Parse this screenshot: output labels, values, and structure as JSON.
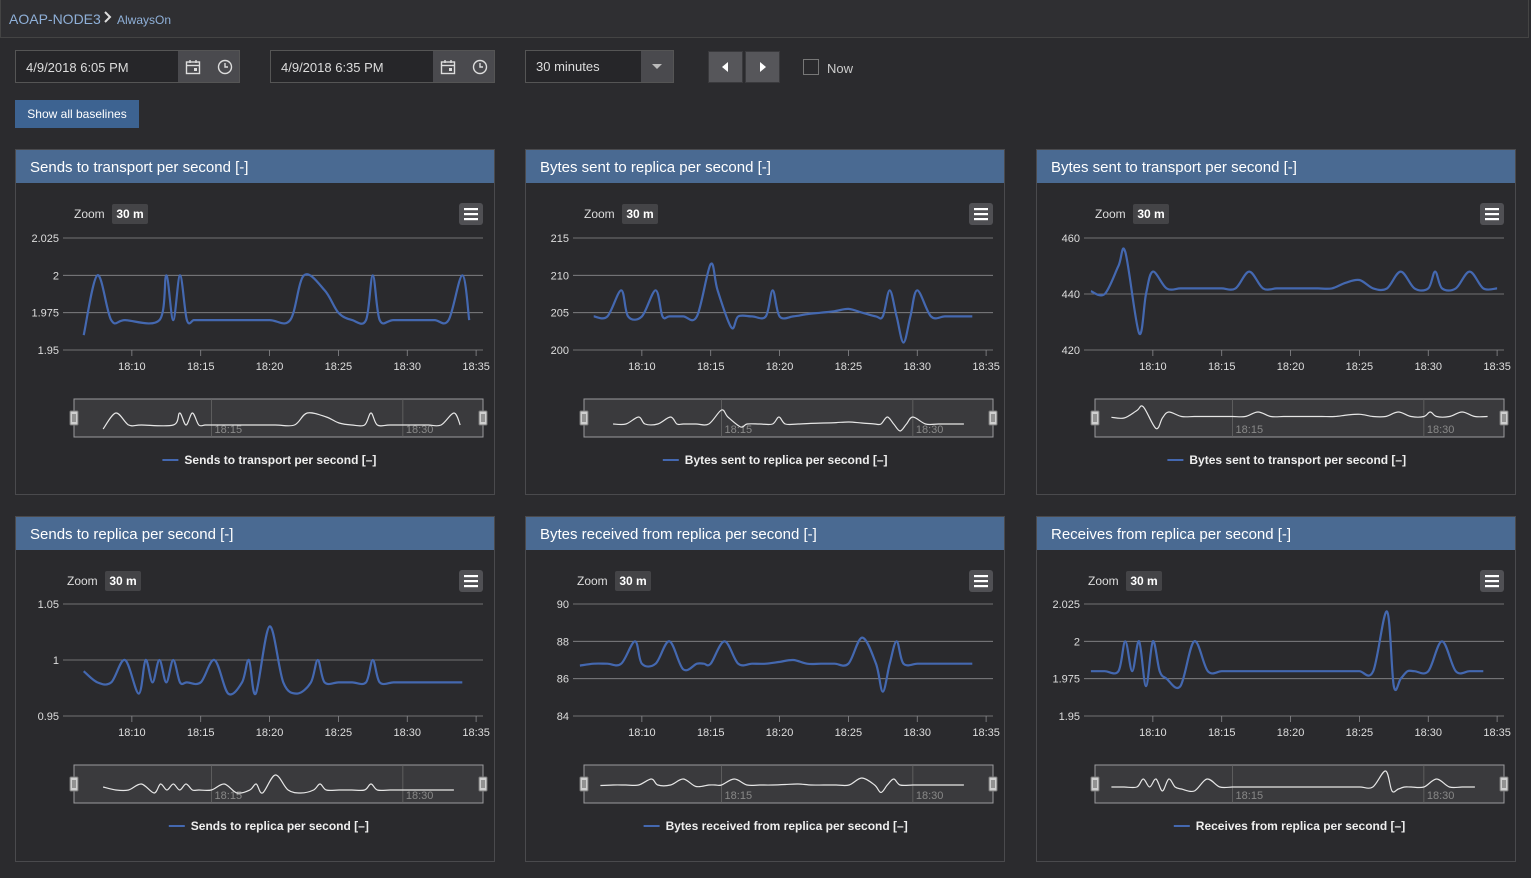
{
  "breadcrumb": {
    "root": "AOAP-NODE3",
    "separator": ">",
    "leaf": "AlwaysOn"
  },
  "toolbar": {
    "start_datetime": "4/9/2018 6:05 PM",
    "end_datetime": "4/9/2018 6:35 PM",
    "range_select": "30 minutes",
    "now_label": "Now",
    "now_checked": false,
    "show_baselines_label": "Show all baselines"
  },
  "icons": [
    "breadcrumb-chevron-icon",
    "calendar-icon",
    "clock-icon",
    "dropdown-arrow-icon",
    "prev-icon",
    "next-icon",
    "hamburger-menu-icon"
  ],
  "colors": {
    "panel_header": "#4a6a92",
    "series_line": "#4468b0",
    "button": "#3d6391"
  },
  "panels": [
    {
      "title": "Sends to transport per second [-]",
      "zoom_label": "Zoom",
      "zoom_value": "30 m",
      "legend": "Sends to transport per second [–]"
    },
    {
      "title": "Bytes sent to replica per second [-]",
      "zoom_label": "Zoom",
      "zoom_value": "30 m",
      "legend": "Bytes sent to replica per second [–]"
    },
    {
      "title": "Bytes sent to transport per second [-]",
      "zoom_label": "Zoom",
      "zoom_value": "30 m",
      "legend": "Bytes sent to transport per second [–]"
    },
    {
      "title": "Sends to replica per second [-]",
      "zoom_label": "Zoom",
      "zoom_value": "30 m",
      "legend": "Sends to replica per second [–]"
    },
    {
      "title": "Bytes received from replica per second [-]",
      "zoom_label": "Zoom",
      "zoom_value": "30 m",
      "legend": "Bytes received from replica per second [–]"
    },
    {
      "title": "Receives from replica per second [-]",
      "zoom_label": "Zoom",
      "zoom_value": "30 m",
      "legend": "Receives from replica per second [–]"
    }
  ],
  "chart_data": [
    {
      "type": "line",
      "y_ticks": [
        "2.025",
        "2",
        "1.975",
        "1.95"
      ],
      "ylim": [
        1.95,
        2.025
      ],
      "x_ticks": [
        "18:10",
        "18:15",
        "18:20",
        "18:25",
        "18:30",
        "18:35"
      ],
      "navigator_ticks": [
        "18:15",
        "18:30"
      ],
      "series": [
        {
          "name": "Sends to transport per second [–]",
          "x": [
            6.5,
            7.5,
            8.5,
            9.5,
            12,
            12.5,
            13,
            13.5,
            14,
            14.5,
            15,
            16,
            18,
            20,
            21.5,
            22.5,
            24,
            25,
            26,
            27,
            27.5,
            28,
            29,
            31,
            32,
            33,
            34,
            34.5
          ],
          "values": [
            1.96,
            2,
            1.97,
            1.97,
            1.97,
            2,
            1.97,
            2,
            1.97,
            1.97,
            1.97,
            1.97,
            1.97,
            1.97,
            1.97,
            2,
            1.99,
            1.975,
            1.97,
            1.97,
            2,
            1.97,
            1.97,
            1.97,
            1.97,
            1.97,
            2,
            1.97
          ]
        }
      ]
    },
    {
      "type": "line",
      "y_ticks": [
        "215",
        "210",
        "205",
        "200"
      ],
      "ylim": [
        200,
        215
      ],
      "x_ticks": [
        "18:10",
        "18:15",
        "18:20",
        "18:25",
        "18:30",
        "18:35"
      ],
      "navigator_ticks": [
        "18:15",
        "18:30"
      ],
      "series": [
        {
          "name": "Bytes sent to replica per second [–]",
          "x": [
            6.5,
            7.5,
            8.5,
            9,
            10,
            11,
            11.5,
            12,
            13,
            14,
            15,
            15.5,
            16.5,
            17,
            18,
            19,
            19.5,
            20,
            21,
            22,
            23,
            24,
            25,
            26,
            27,
            27.5,
            28,
            28.5,
            29,
            29.5,
            30,
            31,
            32,
            33,
            34
          ],
          "values": [
            204.5,
            204.5,
            208,
            204.5,
            204.5,
            208,
            204.5,
            204.5,
            204.5,
            204.5,
            211.5,
            208,
            203,
            204.5,
            204.5,
            204.5,
            208,
            204.5,
            204.5,
            204.8,
            205,
            205.2,
            205.5,
            205,
            204.5,
            204.5,
            208,
            204.5,
            201,
            204.5,
            208,
            204.5,
            204.5,
            204.5,
            204.5
          ]
        }
      ]
    },
    {
      "type": "line",
      "y_ticks": [
        "460",
        "440",
        "420"
      ],
      "ylim": [
        420,
        460
      ],
      "x_ticks": [
        "18:10",
        "18:15",
        "18:20",
        "18:25",
        "18:30",
        "18:35"
      ],
      "navigator_ticks": [
        "18:15",
        "18:30"
      ],
      "series": [
        {
          "name": "Bytes sent to transport per second [–]",
          "x": [
            5.5,
            6.5,
            7.5,
            8,
            9,
            9.5,
            10,
            11,
            12,
            13,
            14,
            15,
            16,
            17,
            18,
            19,
            20,
            21,
            22,
            23,
            24,
            25,
            26,
            27,
            28,
            29,
            30,
            30.5,
            31,
            32,
            33,
            34,
            35
          ],
          "values": [
            441,
            440,
            450,
            455,
            426,
            440,
            448,
            442,
            442,
            442,
            442,
            442,
            442,
            448,
            442,
            442,
            442,
            442,
            442,
            442,
            444,
            445,
            442,
            442,
            448,
            442,
            442,
            448,
            442,
            442,
            448,
            442,
            442
          ]
        }
      ]
    },
    {
      "type": "line",
      "y_ticks": [
        "1.05",
        "1",
        "0.95"
      ],
      "ylim": [
        0.95,
        1.05
      ],
      "x_ticks": [
        "18:10",
        "18:15",
        "18:20",
        "18:25",
        "18:30",
        "18:35"
      ],
      "navigator_ticks": [
        "18:15",
        "18:30"
      ],
      "series": [
        {
          "name": "Sends to replica per second [–]",
          "x": [
            6.5,
            7.5,
            8.5,
            9.5,
            10.5,
            11,
            11.5,
            12,
            12.5,
            13,
            13.5,
            14,
            15,
            16,
            17,
            18,
            18.5,
            19,
            20,
            21,
            22,
            23,
            23.5,
            24,
            25,
            26,
            27,
            27.5,
            28,
            29,
            30,
            31,
            32,
            33,
            34
          ],
          "values": [
            0.99,
            0.98,
            0.98,
            1,
            0.97,
            1,
            0.98,
            1,
            0.98,
            1,
            0.98,
            0.98,
            0.98,
            1,
            0.97,
            0.98,
            1,
            0.97,
            1.03,
            0.98,
            0.97,
            0.98,
            1,
            0.98,
            0.98,
            0.98,
            0.98,
            1,
            0.98,
            0.98,
            0.98,
            0.98,
            0.98,
            0.98,
            0.98
          ]
        }
      ]
    },
    {
      "type": "line",
      "y_ticks": [
        "90",
        "88",
        "86",
        "84"
      ],
      "ylim": [
        84,
        90
      ],
      "x_ticks": [
        "18:10",
        "18:15",
        "18:20",
        "18:25",
        "18:30",
        "18:35"
      ],
      "navigator_ticks": [
        "18:15",
        "18:30"
      ],
      "series": [
        {
          "name": "Bytes received from replica per second [–]",
          "x": [
            5.5,
            6.5,
            7.5,
            8.5,
            9.5,
            10,
            11,
            12,
            13,
            14,
            14.5,
            15,
            16,
            17,
            18,
            19,
            20,
            21,
            22,
            23,
            24,
            25,
            26,
            27,
            27.5,
            28,
            28.5,
            29,
            30,
            31,
            32,
            33,
            34
          ],
          "values": [
            86.7,
            86.8,
            86.8,
            86.8,
            88,
            86.8,
            86.8,
            88,
            86.5,
            86.8,
            86.8,
            86.8,
            88,
            86.8,
            86.8,
            86.8,
            86.9,
            87,
            86.8,
            86.8,
            86.8,
            86.8,
            88.2,
            86.8,
            85.3,
            86.8,
            88,
            86.8,
            86.8,
            86.8,
            86.8,
            86.8,
            86.8
          ]
        }
      ]
    },
    {
      "type": "line",
      "y_ticks": [
        "2.025",
        "2",
        "1.975",
        "1.95"
      ],
      "ylim": [
        1.95,
        2.025
      ],
      "x_ticks": [
        "18:10",
        "18:15",
        "18:20",
        "18:25",
        "18:30",
        "18:35"
      ],
      "navigator_ticks": [
        "18:15",
        "18:30"
      ],
      "series": [
        {
          "name": "Receives from replica per second [–]",
          "x": [
            5.5,
            6.5,
            7.5,
            8,
            8.5,
            9,
            9.5,
            10,
            10.5,
            11,
            12,
            13,
            14,
            15,
            16,
            17,
            18,
            19,
            20,
            21,
            22,
            23,
            24,
            25,
            26,
            27,
            27.5,
            28,
            28.5,
            29,
            30,
            31,
            32,
            33,
            34
          ],
          "values": [
            1.98,
            1.98,
            1.98,
            2,
            1.98,
            2,
            1.97,
            2,
            1.98,
            1.975,
            1.97,
            2,
            1.98,
            1.98,
            1.98,
            1.98,
            1.98,
            1.98,
            1.98,
            1.98,
            1.98,
            1.98,
            1.98,
            1.98,
            1.98,
            2.02,
            1.97,
            1.975,
            1.98,
            1.98,
            1.98,
            2,
            1.98,
            1.98,
            1.98
          ]
        }
      ]
    }
  ]
}
